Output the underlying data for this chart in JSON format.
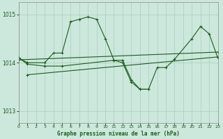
{
  "title": "Graphe pression niveau de la mer (hPa)",
  "bg_color": "#cce8dc",
  "grid_color": "#aaccbb",
  "line_color": "#1a5c1a",
  "xlim": [
    0,
    23
  ],
  "ylim": [
    1012.75,
    1015.25
  ],
  "yticks": [
    1013,
    1014,
    1015
  ],
  "xticks": [
    0,
    1,
    2,
    3,
    4,
    5,
    6,
    7,
    8,
    9,
    10,
    11,
    12,
    13,
    14,
    15,
    16,
    17,
    18,
    19,
    20,
    21,
    22,
    23
  ],
  "curve1_x": [
    0,
    1,
    3,
    4,
    5,
    6,
    7,
    8,
    9,
    10,
    11,
    12,
    13,
    14,
    15
  ],
  "curve1_y": [
    1014.1,
    1014.0,
    1014.0,
    1014.2,
    1014.2,
    1014.85,
    1014.9,
    1014.95,
    1014.9,
    1014.5,
    1014.05,
    1014.0,
    1013.6,
    1013.45,
    1013.45
  ],
  "curve2_x": [
    0,
    1,
    3,
    5,
    11,
    12,
    13,
    14,
    15,
    16,
    17,
    18,
    20,
    21,
    22,
    23
  ],
  "curve2_y": [
    1014.1,
    1013.97,
    1013.93,
    1013.93,
    1014.05,
    1014.05,
    1013.65,
    1013.45,
    1013.45,
    1013.9,
    1013.9,
    1014.07,
    1014.5,
    1014.75,
    1014.6,
    1014.1
  ],
  "curve3_x": [
    1,
    23
  ],
  "curve3_y": [
    1013.75,
    1014.12
  ],
  "curve4_x": [
    0,
    23
  ],
  "curve4_y": [
    1014.06,
    1014.22
  ]
}
